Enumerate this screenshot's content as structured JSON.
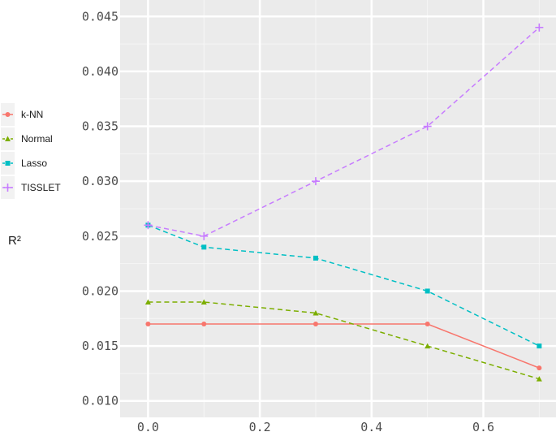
{
  "chart_data": {
    "type": "line",
    "ylabel": "R²",
    "xlabel": "",
    "xlim": [
      -0.05,
      0.73
    ],
    "ylim": [
      0.0085,
      0.0465
    ],
    "x_ticks": [
      0.0,
      0.2,
      0.4,
      0.6
    ],
    "x_tick_labels": [
      "0.0",
      "0.2",
      "0.4",
      "0.6"
    ],
    "y_ticks": [
      0.01,
      0.015,
      0.02,
      0.025,
      0.03,
      0.035,
      0.04,
      0.045
    ],
    "y_tick_labels": [
      "0.010",
      "0.015",
      "0.020",
      "0.025",
      "0.030",
      "0.035",
      "0.040",
      "0.045"
    ],
    "grid": true,
    "legend_position": "left",
    "x": [
      0.0,
      0.1,
      0.3,
      0.5,
      0.7
    ],
    "series": [
      {
        "name": "k-NN",
        "values": [
          0.017,
          0.017,
          0.017,
          0.017,
          0.013
        ],
        "color": "#F8766D",
        "dash": "solid",
        "marker": "circle"
      },
      {
        "name": "Normal",
        "values": [
          0.019,
          0.019,
          0.018,
          0.015,
          0.012
        ],
        "color": "#7CAE00",
        "dash": "dashed",
        "marker": "triangle"
      },
      {
        "name": "Lasso",
        "values": [
          0.026,
          0.024,
          0.023,
          0.02,
          0.015
        ],
        "color": "#00BFC4",
        "dash": "dashed",
        "marker": "square"
      },
      {
        "name": "TISSLET",
        "values": [
          0.026,
          0.025,
          0.03,
          0.035,
          0.044
        ],
        "color": "#C77CFF",
        "dash": "dashed",
        "marker": "plus"
      }
    ]
  }
}
